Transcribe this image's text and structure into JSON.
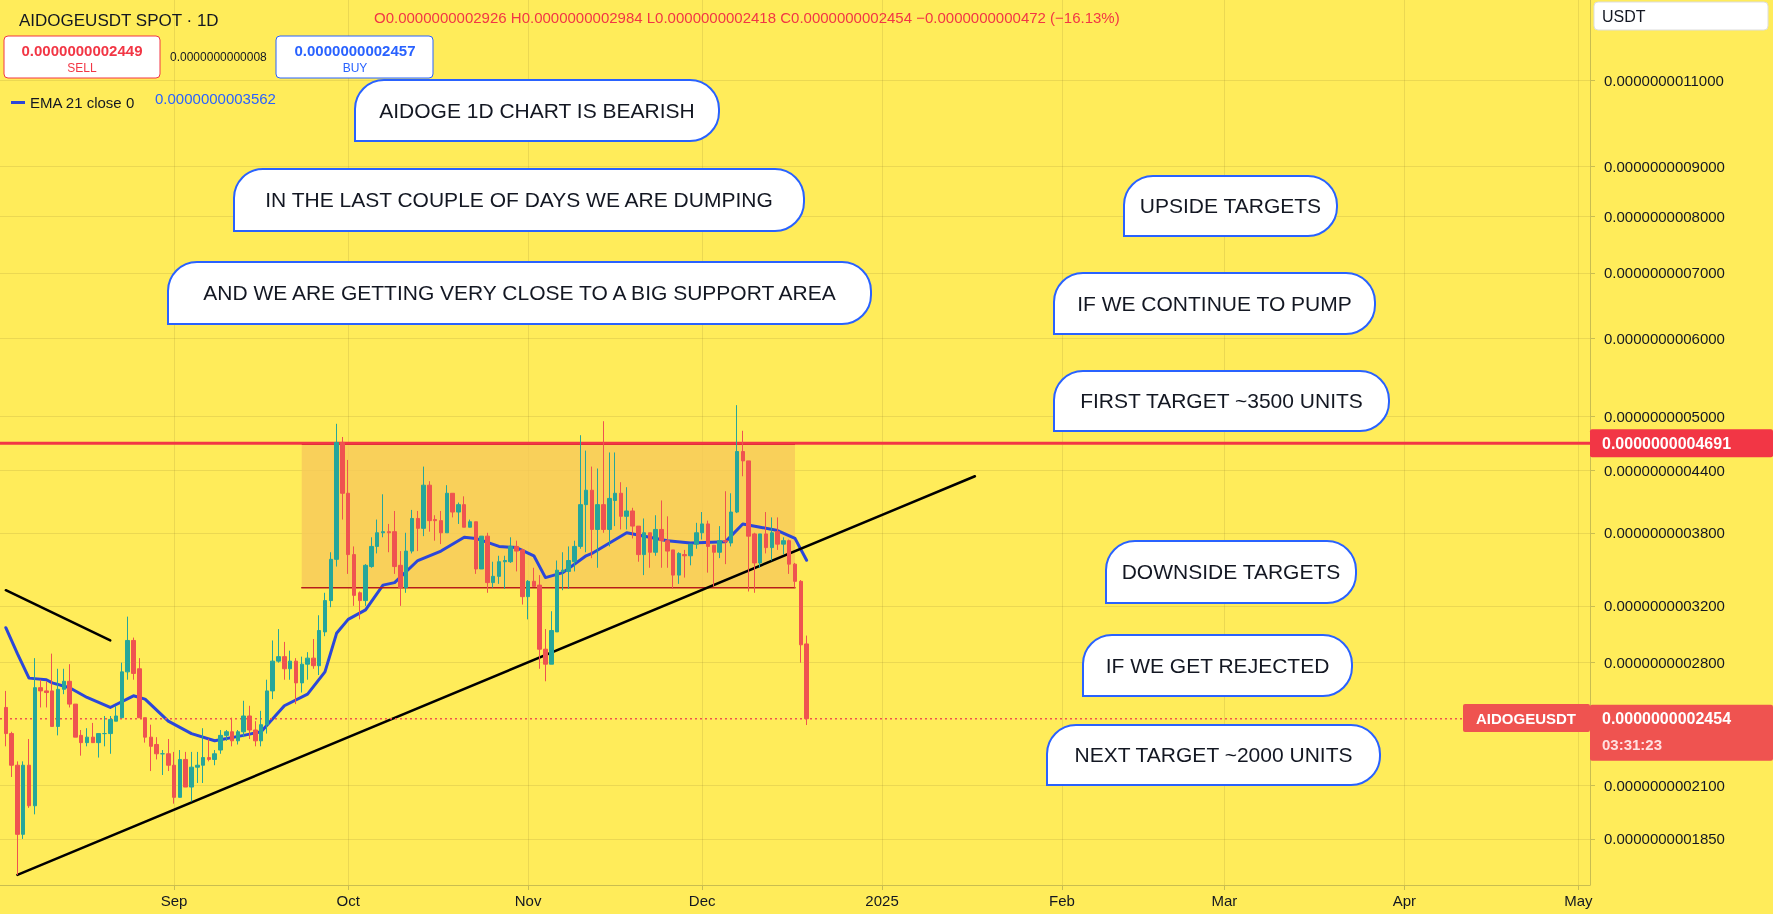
{
  "chart_data": {
    "type": "candlestick",
    "title": "AIDOGEUSDT SPOT · 1D",
    "annotations": [
      "O0.0000000002926 H0.0000000002984 L0.0000000002418 C0.0000000002454 −0.0000000000472 (−16.13%)",
      "0.0000000002449",
      "SELL",
      "0.0000000000008",
      "0.0000000002457",
      "BUY",
      "0.0000000003562",
      "USDT",
      "AIDOGE 1D CHART IS BEARISH",
      "IN THE LAST COUPLE OF DAYS WE ARE DUMPING",
      "AND WE ARE GETTING VERY CLOSE TO A BIG SUPPORT AREA",
      "UPSIDE TARGETS",
      "IF WE CONTINUE TO PUMP",
      "FIRST TARGET ~3500 UNITS",
      "DOWNSIDE TARGETS",
      "IF WE GET REJECTED",
      "NEXT TARGET ~2000 UNITS",
      "AIDOGEUSDT",
      "03:31:23"
    ],
    "series": [
      {
        "type": "area",
        "color": "#f7c95a",
        "x": [
          "2024-09-23",
          "2024-12-17"
        ],
        "values": [
          4.68e-10,
          4.68e-10
        ]
      },
      {
        "type": "line",
        "color": "#b71c1c",
        "x": [
          "2024-09-23",
          "2024-12-17"
        ],
        "values": [
          3.34e-10,
          3.34e-10
        ]
      },
      {
        "type": "candlestick",
        "x": [
          "2024-08-03",
          "2024-08-04",
          "2024-08-05",
          "2024-08-06",
          "2024-08-07",
          "2024-08-08",
          "2024-08-09",
          "2024-08-10",
          "2024-08-11",
          "2024-08-12",
          "2024-08-13",
          "2024-08-14",
          "2024-08-15",
          "2024-08-16",
          "2024-08-17",
          "2024-08-18",
          "2024-08-19",
          "2024-08-20",
          "2024-08-21",
          "2024-08-22",
          "2024-08-23",
          "2024-08-24",
          "2024-08-25",
          "2024-08-26",
          "2024-08-27",
          "2024-08-28",
          "2024-08-29",
          "2024-08-30",
          "2024-08-31",
          "2024-09-01",
          "2024-09-02",
          "2024-09-03",
          "2024-09-04",
          "2024-09-05",
          "2024-09-06",
          "2024-09-07",
          "2024-09-08",
          "2024-09-09",
          "2024-09-10",
          "2024-09-11",
          "2024-09-12",
          "2024-09-13",
          "2024-09-14",
          "2024-09-15",
          "2024-09-16",
          "2024-09-17",
          "2024-09-18",
          "2024-09-19",
          "2024-09-20",
          "2024-09-21",
          "2024-09-22",
          "2024-09-23",
          "2024-09-24",
          "2024-09-25",
          "2024-09-26",
          "2024-09-27",
          "2024-09-28",
          "2024-09-29",
          "2024-09-30",
          "2024-10-01",
          "2024-10-02",
          "2024-10-03",
          "2024-10-04",
          "2024-10-05",
          "2024-10-06",
          "2024-10-07",
          "2024-10-08",
          "2024-10-09",
          "2024-10-10",
          "2024-10-11",
          "2024-10-12",
          "2024-10-13",
          "2024-10-14",
          "2024-10-15",
          "2024-10-16",
          "2024-10-17",
          "2024-10-18",
          "2024-10-19",
          "2024-10-20",
          "2024-10-21",
          "2024-10-22",
          "2024-10-23",
          "2024-10-24",
          "2024-10-25",
          "2024-10-26",
          "2024-10-27",
          "2024-10-28",
          "2024-10-29",
          "2024-10-30",
          "2024-10-31",
          "2024-11-01",
          "2024-11-02",
          "2024-11-03",
          "2024-11-04",
          "2024-11-05",
          "2024-11-06",
          "2024-11-07",
          "2024-11-08",
          "2024-11-09",
          "2024-11-10",
          "2024-11-11",
          "2024-11-12",
          "2024-11-13",
          "2024-11-14",
          "2024-11-15",
          "2024-11-16",
          "2024-11-17",
          "2024-11-18",
          "2024-11-19",
          "2024-11-20",
          "2024-11-21",
          "2024-11-22",
          "2024-11-23",
          "2024-11-24",
          "2024-11-25",
          "2024-11-26",
          "2024-11-27",
          "2024-11-28",
          "2024-11-29",
          "2024-11-30",
          "2024-12-01",
          "2024-12-02",
          "2024-12-03",
          "2024-12-04",
          "2024-12-05",
          "2024-12-06",
          "2024-12-07",
          "2024-12-08",
          "2024-12-09",
          "2024-12-10",
          "2024-12-11",
          "2024-12-12",
          "2024-12-13",
          "2024-12-14",
          "2024-12-15",
          "2024-12-16",
          "2024-12-17",
          "2024-12-18",
          "2024-12-19"
        ],
        "ohlc": [
          [
            2.52e-10,
            2.62e-10,
            2.3e-10,
            2.37e-10
          ],
          [
            2.37e-10,
            2.38e-10,
            2.14e-10,
            2.2e-10
          ],
          [
            2.2e-10,
            2.22e-10,
            1.7e-10,
            1.87e-10
          ],
          [
            1.87e-10,
            2.22e-10,
            1.85e-10,
            2.2e-10
          ],
          [
            2.2e-10,
            2.34e-10,
            1.99e-10,
            2e-10
          ],
          [
            2e-10,
            2.83e-10,
            1.96e-10,
            2.64e-10
          ],
          [
            2.64e-10,
            2.69e-10,
            2.52e-10,
            2.62e-10
          ],
          [
            2.62e-10,
            2.68e-10,
            2.52e-10,
            2.61e-10
          ],
          [
            2.62e-10,
            2.86e-10,
            2.41e-10,
            2.41e-10
          ],
          [
            2.41e-10,
            2.76e-10,
            2.36e-10,
            2.63e-10
          ],
          [
            2.63e-10,
            2.76e-10,
            2.6e-10,
            2.68e-10
          ],
          [
            2.68e-10,
            2.79e-10,
            2.52e-10,
            2.54e-10
          ],
          [
            2.54e-10,
            2.54e-10,
            2.35e-10,
            2.35e-10
          ],
          [
            2.36e-10,
            2.39e-10,
            2.25e-10,
            2.32e-10
          ],
          [
            2.32e-10,
            2.4e-10,
            2.3e-10,
            2.35e-10
          ],
          [
            2.35e-10,
            2.43e-10,
            2.32e-10,
            2.32e-10
          ],
          [
            2.32e-10,
            2.37e-10,
            2.24e-10,
            2.37e-10
          ],
          [
            2.37e-10,
            2.47e-10,
            2.3e-10,
            2.37e-10
          ],
          [
            2.37e-10,
            2.47e-10,
            2.26e-10,
            2.45e-10
          ],
          [
            2.44e-10,
            2.53e-10,
            2.44e-10,
            2.47e-10
          ],
          [
            2.46e-10,
            2.8e-10,
            2.46e-10,
            2.74e-10
          ],
          [
            2.74e-10,
            3.12e-10,
            2.69e-10,
            2.95e-10
          ],
          [
            2.95e-10,
            2.97e-10,
            2.69e-10,
            2.73e-10
          ],
          [
            2.76e-10,
            2.83e-10,
            2.46e-10,
            2.46e-10
          ],
          [
            2.46e-10,
            2.46e-10,
            2.32e-10,
            2.35e-10
          ],
          [
            2.35e-10,
            2.42e-10,
            2.17e-10,
            2.3e-10
          ],
          [
            2.31e-10,
            2.35e-10,
            2.23e-10,
            2.26e-10
          ],
          [
            2.26e-10,
            2.28e-10,
            2.15e-10,
            2.26e-10
          ],
          [
            2.26e-10,
            2.34e-10,
            2.17e-10,
            2.2e-10
          ],
          [
            2.2e-10,
            2.27e-10,
            2.01e-10,
            2.04e-10
          ],
          [
            2.04e-10,
            2.28e-10,
            2.04e-10,
            2.23e-10
          ],
          [
            2.23e-10,
            2.27e-10,
            2.09e-10,
            2.09e-10
          ],
          [
            2.09e-10,
            2.27e-10,
            2.02e-10,
            2.19e-10
          ],
          [
            2.19e-10,
            2.27e-10,
            2.11e-10,
            2.2e-10
          ],
          [
            2.2e-10,
            2.4e-10,
            2.11e-10,
            2.24e-10
          ],
          [
            2.24e-10,
            2.34e-10,
            2.22e-10,
            2.23e-10
          ],
          [
            2.23e-10,
            2.28e-10,
            2.2e-10,
            2.26e-10
          ],
          [
            2.28e-10,
            2.39e-10,
            2.26e-10,
            2.36e-10
          ],
          [
            2.36e-10,
            2.39e-10,
            2.33e-10,
            2.38e-10
          ],
          [
            2.38e-10,
            2.46e-10,
            2.3e-10,
            2.33e-10
          ],
          [
            2.33e-10,
            2.39e-10,
            2.31e-10,
            2.38e-10
          ],
          [
            2.38e-10,
            2.56e-10,
            2.35e-10,
            2.47e-10
          ],
          [
            2.47e-10,
            2.53e-10,
            2.34e-10,
            2.39e-10
          ],
          [
            2.39e-10,
            2.44e-10,
            2.3e-10,
            2.33e-10
          ],
          [
            2.33e-10,
            2.5e-10,
            2.3e-10,
            2.42e-10
          ],
          [
            2.42e-10,
            2.69e-10,
            2.37e-10,
            2.62e-10
          ],
          [
            2.62e-10,
            2.95e-10,
            2.57e-10,
            2.81e-10
          ],
          [
            2.81e-10,
            3.03e-10,
            2.8e-10,
            2.84e-10
          ],
          [
            2.84e-10,
            2.94e-10,
            2.69e-10,
            2.76e-10
          ],
          [
            2.76e-10,
            2.88e-10,
            2.69e-10,
            2.81e-10
          ],
          [
            2.81e-10,
            2.83e-10,
            2.54e-10,
            2.67e-10
          ],
          [
            2.67e-10,
            2.84e-10,
            2.61e-10,
            2.79e-10
          ],
          [
            2.79e-10,
            2.87e-10,
            2.69e-10,
            2.83e-10
          ],
          [
            2.83e-10,
            2.96e-10,
            2.76e-10,
            2.78e-10
          ],
          [
            2.78e-10,
            3.13e-10,
            2.72e-10,
            3.02e-10
          ],
          [
            3.01e-10,
            3.3e-10,
            2.98e-10,
            3.24e-10
          ],
          [
            3.24e-10,
            3.63e-10,
            3.19e-10,
            3.57e-10
          ],
          [
            3.57e-10,
            4.91e-10,
            3.51e-10,
            4.7e-10
          ],
          [
            4.7e-10,
            4.76e-10,
            3.92e-10,
            4.17e-10
          ],
          [
            4.17e-10,
            4.51e-10,
            3.45e-10,
            3.61e-10
          ],
          [
            3.61e-10,
            3.68e-10,
            3.2e-10,
            3.28e-10
          ],
          [
            3.3e-10,
            3.31e-10,
            3.1e-10,
            3.24e-10
          ],
          [
            3.24e-10,
            3.53e-10,
            3.2e-10,
            3.52e-10
          ],
          [
            3.51e-10,
            3.76e-10,
            3.5e-10,
            3.68e-10
          ],
          [
            3.68e-10,
            3.92e-10,
            3.62e-10,
            3.8e-10
          ],
          [
            3.8e-10,
            4.16e-10,
            3.76e-10,
            3.81e-10
          ],
          [
            3.81e-10,
            3.88e-10,
            3.63e-10,
            3.8e-10
          ],
          [
            3.81e-10,
            4e-10,
            3.45e-10,
            3.51e-10
          ],
          [
            3.52e-10,
            3.64e-10,
            3.2e-10,
            3.34e-10
          ],
          [
            3.34e-10,
            3.8e-10,
            3.3e-10,
            3.64e-10
          ],
          [
            3.64e-10,
            4.01e-10,
            3.62e-10,
            3.93e-10
          ],
          [
            3.93e-10,
            4e-10,
            3.64e-10,
            3.84e-10
          ],
          [
            3.84e-10,
            4.44e-10,
            3.77e-10,
            4.25e-10
          ],
          [
            4.25e-10,
            4.29e-10,
            3.81e-10,
            3.91e-10
          ],
          [
            3.92e-10,
            3.96e-10,
            3.73e-10,
            3.91e-10
          ],
          [
            3.91e-10,
            4e-10,
            3.7e-10,
            3.8e-10
          ],
          [
            3.8e-10,
            4.25e-10,
            3.8e-10,
            4.17e-10
          ],
          [
            4.17e-10,
            4.17e-10,
            3.94e-10,
            3.99e-10
          ],
          [
            3.99e-10,
            4.08e-10,
            3.88e-10,
            4.06e-10
          ],
          [
            4.06e-10,
            4.14e-10,
            3.85e-10,
            3.85e-10
          ],
          [
            3.85e-10,
            3.92e-10,
            3.85e-10,
            3.9e-10
          ],
          [
            3.9e-10,
            3.9e-10,
            3.45e-10,
            3.49e-10
          ],
          [
            3.49e-10,
            3.77e-10,
            3.49e-10,
            3.77e-10
          ],
          [
            3.77e-10,
            3.8e-10,
            3.3e-10,
            3.38e-10
          ],
          [
            3.38e-10,
            3.55e-10,
            3.34e-10,
            3.43e-10
          ],
          [
            3.43e-10,
            3.6e-10,
            3.37e-10,
            3.55e-10
          ],
          [
            3.55e-10,
            3.6e-10,
            3.33e-10,
            3.56e-10
          ],
          [
            3.55e-10,
            3.76e-10,
            3.54e-10,
            3.68e-10
          ],
          [
            3.68e-10,
            3.73e-10,
            3.47e-10,
            3.64e-10
          ],
          [
            3.65e-10,
            3.66e-10,
            3.21e-10,
            3.27e-10
          ],
          [
            3.27e-10,
            3.4e-10,
            3.1e-10,
            3.39e-10
          ],
          [
            3.39e-10,
            3.5e-10,
            3.35e-10,
            3.35e-10
          ],
          [
            3.36e-10,
            3.44e-10,
            2.76e-10,
            2.89e-10
          ],
          [
            2.89e-10,
            3.03e-10,
            2.68e-10,
            2.79e-10
          ],
          [
            2.79e-10,
            3.16e-10,
            2.79e-10,
            3.02e-10
          ],
          [
            3.01e-10,
            3.56e-10,
            3.01e-10,
            3.48e-10
          ],
          [
            3.47e-10,
            3.63e-10,
            3.32e-10,
            3.48e-10
          ],
          [
            3.47e-10,
            3.68e-10,
            3.33e-10,
            3.56e-10
          ],
          [
            3.55e-10,
            3.73e-10,
            3.47e-10,
            3.68e-10
          ],
          [
            3.68e-10,
            4.78e-10,
            3.66e-10,
            4.06e-10
          ],
          [
            4.06e-10,
            4.61e-10,
            3.63e-10,
            4.2e-10
          ],
          [
            4.2e-10,
            4.44e-10,
            3.58e-10,
            3.83e-10
          ],
          [
            3.83e-10,
            4.42e-10,
            3.5e-10,
            4.06e-10
          ],
          [
            4.06e-10,
            4.94e-10,
            3.8e-10,
            3.83e-10
          ],
          [
            3.83e-10,
            4.59e-10,
            3.68e-10,
            4.12e-10
          ],
          [
            4.1e-10,
            4.59e-10,
            3.86e-10,
            4.17e-10
          ],
          [
            4.17e-10,
            4.28e-10,
            3.83e-10,
            3.95e-10
          ],
          [
            3.95e-10,
            4.23e-10,
            3.83e-10,
            4e-10
          ],
          [
            4e-10,
            4.03e-10,
            3.75e-10,
            3.86e-10
          ],
          [
            3.86e-10,
            3.86e-10,
            3.55e-10,
            3.61e-10
          ],
          [
            3.61e-10,
            3.93e-10,
            3.44e-10,
            3.8e-10
          ],
          [
            3.8e-10,
            3.8e-10,
            3.5e-10,
            3.63e-10
          ],
          [
            3.63e-10,
            3.96e-10,
            3.6e-10,
            3.83e-10
          ],
          [
            3.83e-10,
            4.1e-10,
            3.5e-10,
            3.73e-10
          ],
          [
            3.73e-10,
            3.95e-10,
            3.5e-10,
            3.64e-10
          ],
          [
            3.65e-10,
            3.65e-10,
            3.33e-10,
            3.44e-10
          ],
          [
            3.44e-10,
            3.63e-10,
            3.37e-10,
            3.62e-10
          ],
          [
            3.61e-10,
            3.65e-10,
            3.42e-10,
            3.6e-10
          ],
          [
            3.6e-10,
            3.7e-10,
            3.52e-10,
            3.7e-10
          ],
          [
            3.7e-10,
            3.89e-10,
            3.66e-10,
            3.8e-10
          ],
          [
            3.8e-10,
            3.99e-10,
            3.74e-10,
            3.88e-10
          ],
          [
            3.88e-10,
            3.91e-10,
            3.46e-10,
            3.68e-10
          ],
          [
            3.69e-10,
            3.69e-10,
            3.35e-10,
            3.63e-10
          ],
          [
            3.63e-10,
            3.86e-10,
            3.58e-10,
            3.73e-10
          ],
          [
            3.73e-10,
            4.19e-10,
            3.53e-10,
            3.72e-10
          ],
          [
            3.71e-10,
            4.17e-10,
            3.68e-10,
            3.99e-10
          ],
          [
            3.99e-10,
            5.13e-10,
            3.98e-10,
            4.6e-10
          ],
          [
            4.6e-10,
            4.83e-10,
            4.34e-10,
            4.5e-10
          ],
          [
            4.5e-10,
            4.5e-10,
            3.31e-10,
            3.77e-10
          ],
          [
            3.79e-10,
            3.8e-10,
            3.3e-10,
            3.54e-10
          ],
          [
            3.54e-10,
            3.79e-10,
            3.5e-10,
            3.79e-10
          ],
          [
            3.79e-10,
            3.99e-10,
            3.62e-10,
            3.67e-10
          ],
          [
            3.67e-10,
            3.94e-10,
            3.56e-10,
            3.8e-10
          ],
          [
            3.81e-10,
            3.94e-10,
            3.65e-10,
            3.7e-10
          ],
          [
            3.7e-10,
            3.76e-10,
            3.61e-10,
            3.73e-10
          ],
          [
            3.73e-10,
            3.74e-10,
            3.45e-10,
            3.53e-10
          ],
          [
            3.53e-10,
            3.54e-10,
            3.34e-10,
            3.39e-10
          ],
          [
            3.39e-10,
            3.4e-10,
            2.8e-10,
            2.92e-10
          ],
          [
            2.926e-10,
            2.984e-10,
            2.418e-10,
            2.454e-10
          ]
        ]
      },
      {
        "type": "line",
        "name": "EMA 21 close 0",
        "color": "#2b47d9",
        "x": [
          "2024-08-03",
          "2024-08-05",
          "2024-08-07",
          "2024-08-10",
          "2024-08-11",
          "2024-08-14",
          "2024-08-17",
          "2024-08-21",
          "2024-08-25",
          "2024-08-27",
          "2024-08-31",
          "2024-09-04",
          "2024-09-08",
          "2024-09-13",
          "2024-09-16",
          "2024-09-20",
          "2024-09-24",
          "2024-09-27",
          "2024-09-29",
          "2024-10-01",
          "2024-10-04",
          "2024-10-07",
          "2024-10-09",
          "2024-10-13",
          "2024-10-17",
          "2024-10-21",
          "2024-10-23",
          "2024-10-27",
          "2024-10-30",
          "2024-11-02",
          "2024-11-04",
          "2024-11-07",
          "2024-11-11",
          "2024-11-12",
          "2024-11-18",
          "2024-11-25",
          "2024-11-29",
          "2024-12-05",
          "2024-12-08",
          "2024-12-11",
          "2024-12-14",
          "2024-12-17",
          "2024-12-19"
        ],
        "values": [
          3.04e-10,
          2.86e-10,
          2.7e-10,
          2.69e-10,
          2.67e-10,
          2.64e-10,
          2.58e-10,
          2.52e-10,
          2.59e-10,
          2.57e-10,
          2.44e-10,
          2.37e-10,
          2.33e-10,
          2.36e-10,
          2.38e-10,
          2.53e-10,
          2.6e-10,
          2.74e-10,
          3e-10,
          3.1e-10,
          3.17e-10,
          3.36e-10,
          3.38e-10,
          3.56e-10,
          3.64e-10,
          3.76e-10,
          3.75e-10,
          3.68e-10,
          3.67e-10,
          3.6e-10,
          3.42e-10,
          3.46e-10,
          3.6e-10,
          3.62e-10,
          3.8e-10,
          3.73e-10,
          3.71e-10,
          3.72e-10,
          3.88e-10,
          3.85e-10,
          3.82e-10,
          3.75e-10,
          3.562e-10
        ]
      },
      {
        "type": "line",
        "color": "#000000",
        "x": [
          "2024-08-05",
          "2025-01-17"
        ],
        "values": [
          1.7e-10,
          4.34e-10
        ]
      },
      {
        "type": "line",
        "color": "#000000",
        "x": [
          "2024-08-03",
          "2024-08-21"
        ],
        "values": [
          3.32e-10,
          2.95e-10
        ]
      }
    ],
    "xlim": [
      "2024-08-02",
      "2025-05-03"
    ],
    "xticks": [
      {
        "value": "2024-09-01",
        "label": "Sep"
      },
      {
        "value": "2024-10-01",
        "label": "Oct"
      },
      {
        "value": "2024-11-01",
        "label": "Nov"
      },
      {
        "value": "2024-12-01",
        "label": "Dec"
      },
      {
        "value": "2025-01-01",
        "label": "2025"
      },
      {
        "value": "2025-02-01",
        "label": "Feb"
      },
      {
        "value": "2025-03-01",
        "label": "Mar"
      },
      {
        "value": "2025-04-01",
        "label": "Apr"
      },
      {
        "value": "2025-05-01",
        "label": "May"
      }
    ],
    "log": "y",
    "ylim": [
      1.66e-10,
      1.33e-09
    ],
    "yticks": [
      {
        "value": 1.85e-10,
        "label": "0.0000000001850"
      },
      {
        "value": 2.1e-10,
        "label": "0.0000000002100"
      },
      {
        "value": 2.8e-10,
        "label": "0.0000000002800"
      },
      {
        "value": 3.2e-10,
        "label": "0.0000000003200"
      },
      {
        "value": 3.8e-10,
        "label": "0.0000000003800"
      },
      {
        "value": 4.4e-10,
        "label": "0.0000000004400"
      },
      {
        "value": 5e-10,
        "label": "0.0000000005000"
      },
      {
        "value": 6e-10,
        "label": "0.0000000006000"
      },
      {
        "value": 7e-10,
        "label": "0.0000000007000"
      },
      {
        "value": 8e-10,
        "label": "0.0000000008000"
      },
      {
        "value": 9e-10,
        "label": "0.0000000009000"
      },
      {
        "value": 1.1e-09,
        "label": "0.0000000011000"
      }
    ],
    "ref_lines": [
      {
        "axis": "y",
        "value": 4.691e-10,
        "label": "0.0000000004691",
        "color": "#f23645",
        "line_style": "solid"
      },
      {
        "axis": "y",
        "value": 2.454e-10,
        "label": "0.0000000002454",
        "color": "#ef5350",
        "line_style": "dotted"
      }
    ],
    "grid": true,
    "legend": "top left"
  }
}
